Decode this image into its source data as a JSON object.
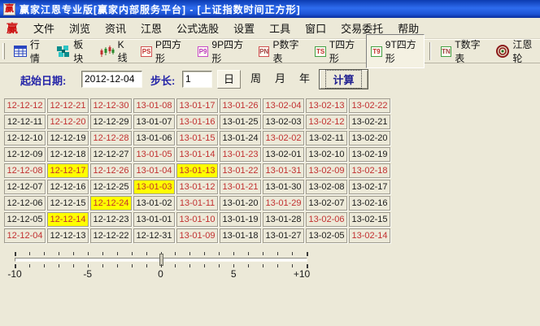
{
  "window": {
    "title": "赢家江恩专业版[赢家内部服务平台] - [上证指数时间正方形]",
    "logo_char": "赢"
  },
  "menu": {
    "logo": "赢",
    "items": [
      "文件",
      "浏览",
      "资讯",
      "江恩",
      "公式选股",
      "设置",
      "工具",
      "窗口",
      "交易委托",
      "帮助"
    ]
  },
  "toolbar": {
    "items": [
      {
        "icon": "quotes-table-icon",
        "label": "行情"
      },
      {
        "icon": "blocks-icon",
        "label": "板块"
      },
      {
        "icon": "candlestick-icon",
        "label": "K线"
      },
      {
        "icon": "p-square-icon",
        "badge": "PS",
        "badge_color": "#d05050",
        "text_color": "#c03030",
        "label": "P四方形"
      },
      {
        "icon": "p9-square-icon",
        "badge": "P9",
        "badge_color": "#c84cc8",
        "text_color": "#b832b8",
        "label": "9P四方形"
      },
      {
        "icon": "p-number-icon",
        "badge": "PN",
        "badge_color": "#d05050",
        "text_color": "#a04040",
        "label": "P数字表"
      },
      {
        "icon": "t-square-icon",
        "badge": "TS",
        "badge_color": "#44a044",
        "text_color": "#c03030",
        "label": "T四方形"
      },
      {
        "icon": "t9-square-icon",
        "badge": "T9",
        "badge_color": "#44a044",
        "text_color": "#c03030",
        "label": "9T四方形",
        "pressed": true,
        "sep_after": true
      },
      {
        "icon": "t-number-icon",
        "badge": "TN",
        "badge_color": "#44a044",
        "text_color": "#a04040",
        "label": "T数字表"
      },
      {
        "icon": "gann-wheel-icon",
        "label": "江恩轮"
      }
    ]
  },
  "controls": {
    "start_date_label": "起始日期:",
    "start_date_value": "2012-12-04",
    "step_label": "步长:",
    "step_value": "1",
    "period_options": [
      "日",
      "周",
      "月",
      "年"
    ],
    "period_selected": "日",
    "calc_button": "计算"
  },
  "grid": {
    "rows": [
      [
        {
          "t": "12-12-12",
          "c": "red"
        },
        {
          "t": "12-12-21",
          "c": "red"
        },
        {
          "t": "12-12-30",
          "c": "red"
        },
        {
          "t": "13-01-08",
          "c": "red"
        },
        {
          "t": "13-01-17",
          "c": "red"
        },
        {
          "t": "13-01-26",
          "c": "red"
        },
        {
          "t": "13-02-04",
          "c": "red"
        },
        {
          "t": "13-02-13",
          "c": "red"
        },
        {
          "t": "13-02-22",
          "c": "red"
        }
      ],
      [
        {
          "t": "12-12-11",
          "c": "black"
        },
        {
          "t": "12-12-20",
          "c": "red"
        },
        {
          "t": "12-12-29",
          "c": "black"
        },
        {
          "t": "13-01-07",
          "c": "black"
        },
        {
          "t": "13-01-16",
          "c": "red"
        },
        {
          "t": "13-01-25",
          "c": "black"
        },
        {
          "t": "13-02-03",
          "c": "black"
        },
        {
          "t": "13-02-12",
          "c": "red"
        },
        {
          "t": "13-02-21",
          "c": "black"
        }
      ],
      [
        {
          "t": "12-12-10",
          "c": "black"
        },
        {
          "t": "12-12-19",
          "c": "black"
        },
        {
          "t": "12-12-28",
          "c": "red"
        },
        {
          "t": "13-01-06",
          "c": "black"
        },
        {
          "t": "13-01-15",
          "c": "red"
        },
        {
          "t": "13-01-24",
          "c": "black"
        },
        {
          "t": "13-02-02",
          "c": "red"
        },
        {
          "t": "13-02-11",
          "c": "black"
        },
        {
          "t": "13-02-20",
          "c": "black"
        }
      ],
      [
        {
          "t": "12-12-09",
          "c": "black"
        },
        {
          "t": "12-12-18",
          "c": "black"
        },
        {
          "t": "12-12-27",
          "c": "black"
        },
        {
          "t": "13-01-05",
          "c": "red"
        },
        {
          "t": "13-01-14",
          "c": "red"
        },
        {
          "t": "13-01-23",
          "c": "red"
        },
        {
          "t": "13-02-01",
          "c": "black"
        },
        {
          "t": "13-02-10",
          "c": "black"
        },
        {
          "t": "13-02-19",
          "c": "black"
        }
      ],
      [
        {
          "t": "12-12-08",
          "c": "red"
        },
        {
          "t": "12-12-17",
          "c": "red",
          "hl": true
        },
        {
          "t": "12-12-26",
          "c": "red"
        },
        {
          "t": "13-01-04",
          "c": "red"
        },
        {
          "t": "13-01-13",
          "c": "red",
          "hl": true
        },
        {
          "t": "13-01-22",
          "c": "red"
        },
        {
          "t": "13-01-31",
          "c": "red"
        },
        {
          "t": "13-02-09",
          "c": "red"
        },
        {
          "t": "13-02-18",
          "c": "red"
        }
      ],
      [
        {
          "t": "12-12-07",
          "c": "black"
        },
        {
          "t": "12-12-16",
          "c": "black"
        },
        {
          "t": "12-12-25",
          "c": "black"
        },
        {
          "t": "13-01-03",
          "c": "red",
          "hl": true
        },
        {
          "t": "13-01-12",
          "c": "red"
        },
        {
          "t": "13-01-21",
          "c": "red"
        },
        {
          "t": "13-01-30",
          "c": "black"
        },
        {
          "t": "13-02-08",
          "c": "black"
        },
        {
          "t": "13-02-17",
          "c": "black"
        }
      ],
      [
        {
          "t": "12-12-06",
          "c": "black"
        },
        {
          "t": "12-12-15",
          "c": "black"
        },
        {
          "t": "12-12-24",
          "c": "red",
          "hl": true
        },
        {
          "t": "13-01-02",
          "c": "black"
        },
        {
          "t": "13-01-11",
          "c": "red"
        },
        {
          "t": "13-01-20",
          "c": "black"
        },
        {
          "t": "13-01-29",
          "c": "red"
        },
        {
          "t": "13-02-07",
          "c": "black"
        },
        {
          "t": "13-02-16",
          "c": "black"
        }
      ],
      [
        {
          "t": "12-12-05",
          "c": "black"
        },
        {
          "t": "12-12-14",
          "c": "red",
          "hl": true
        },
        {
          "t": "12-12-23",
          "c": "black"
        },
        {
          "t": "13-01-01",
          "c": "black"
        },
        {
          "t": "13-01-10",
          "c": "red"
        },
        {
          "t": "13-01-19",
          "c": "black"
        },
        {
          "t": "13-01-28",
          "c": "black"
        },
        {
          "t": "13-02-06",
          "c": "red"
        },
        {
          "t": "13-02-15",
          "c": "black"
        }
      ],
      [
        {
          "t": "12-12-04",
          "c": "red"
        },
        {
          "t": "12-12-13",
          "c": "black"
        },
        {
          "t": "12-12-22",
          "c": "black"
        },
        {
          "t": "12-12-31",
          "c": "black"
        },
        {
          "t": "13-01-09",
          "c": "red"
        },
        {
          "t": "13-01-18",
          "c": "black"
        },
        {
          "t": "13-01-27",
          "c": "black"
        },
        {
          "t": "13-02-05",
          "c": "black"
        },
        {
          "t": "13-02-14",
          "c": "red"
        }
      ]
    ]
  },
  "slider": {
    "min": -10,
    "max": 10,
    "value": 0,
    "tick_count": 21,
    "labels": [
      {
        "text": "-10",
        "value": -10
      },
      {
        "text": "-5",
        "value": -5
      },
      {
        "text": "0",
        "value": 0
      },
      {
        "text": "5",
        "value": 5
      },
      {
        "text": "+10",
        "value": 10
      }
    ]
  },
  "colors": {
    "window_bg": "#ece9d8",
    "title_blue": "#2e6cee",
    "date_red": "#c23030",
    "date_black": "#1c1c1c",
    "highlight_yellow": "#ffff00",
    "label_blue": "#2424a8"
  }
}
